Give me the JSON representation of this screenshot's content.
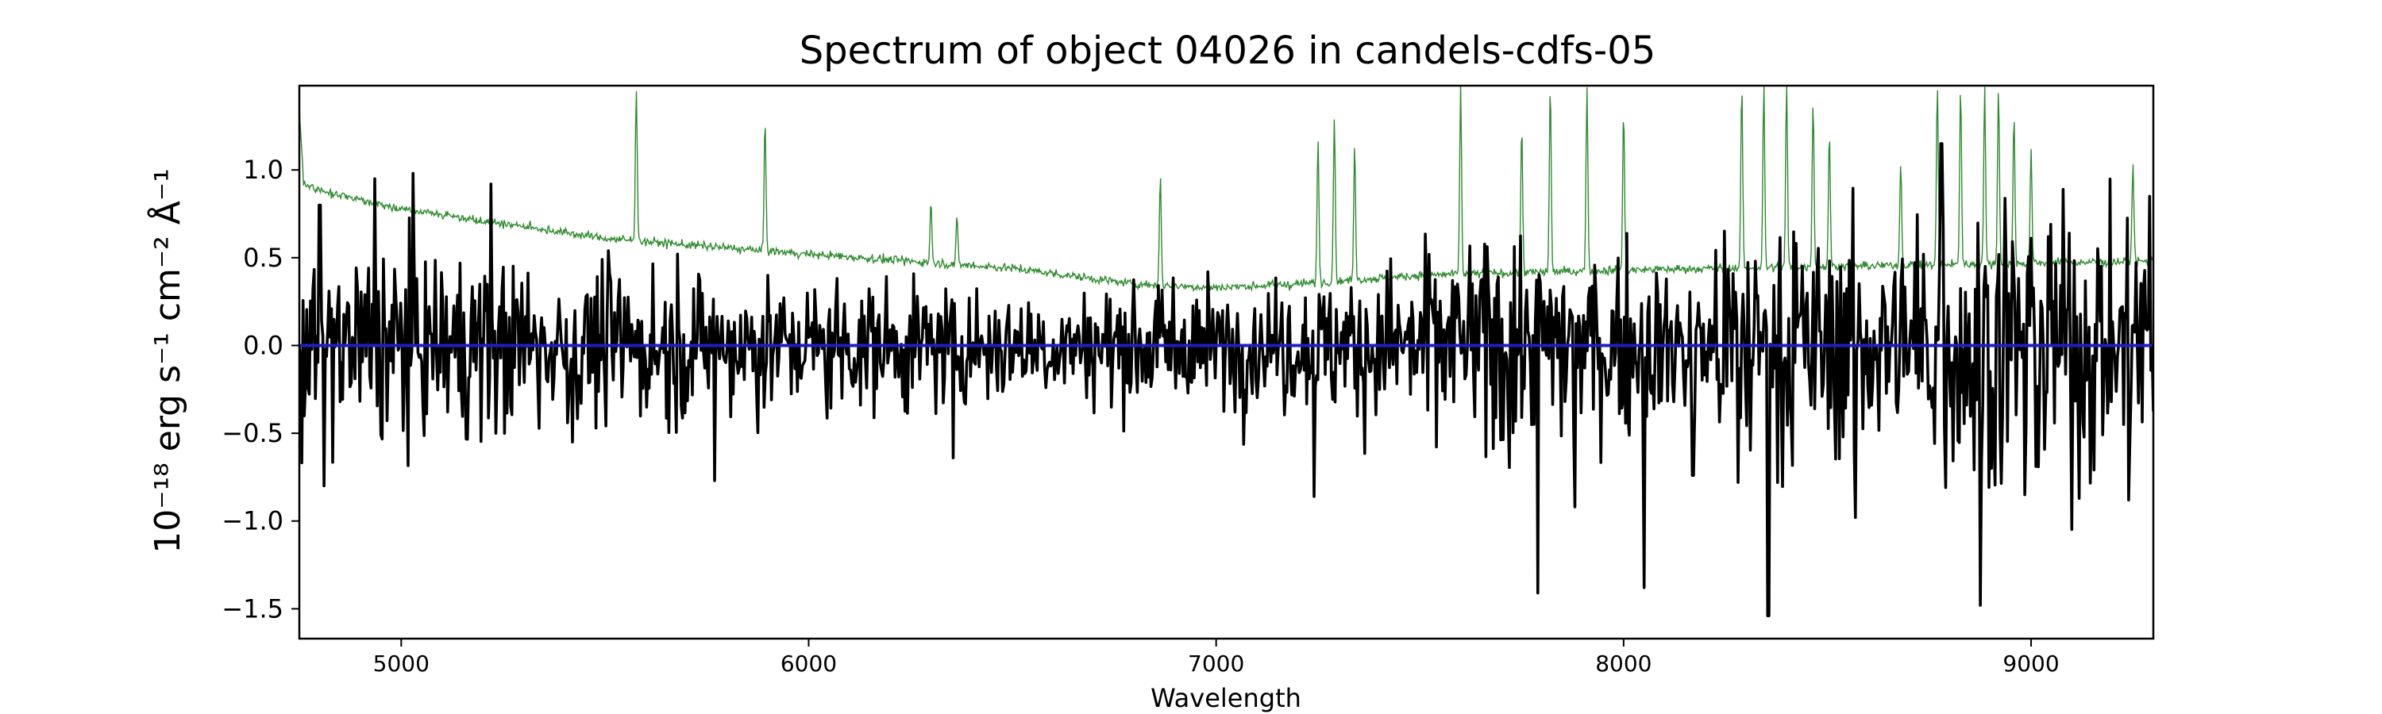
{
  "chart_data": {
    "type": "line",
    "title": "Spectrum of object 04026 in candels-cdfs-05",
    "xlabel": "Wavelength",
    "ylabel": "10⁻¹⁸ erg s⁻¹ cm⁻² Å⁻¹",
    "xlim": [
      4750,
      9300
    ],
    "ylim": [
      -1.67,
      1.48
    ],
    "xticks": [
      5000,
      6000,
      7000,
      8000,
      9000
    ],
    "yticks": [
      -1.5,
      -1.0,
      -0.5,
      0.0,
      0.5,
      1.0
    ],
    "grid": false,
    "series": [
      {
        "color": "#000000",
        "style": "flux",
        "x_range": [
          4750,
          9300
        ],
        "n_points": 1500,
        "noise_sigma_envelope": [
          [
            4750,
            0.28
          ],
          [
            5500,
            0.22
          ],
          [
            6500,
            0.16
          ],
          [
            7200,
            0.18
          ],
          [
            7700,
            0.32
          ],
          [
            8100,
            0.22
          ],
          [
            8300,
            0.38
          ],
          [
            8600,
            0.3
          ],
          [
            8900,
            0.45
          ],
          [
            9300,
            0.35
          ]
        ],
        "features": [
          {
            "x": 4800,
            "y": 0.8
          },
          {
            "x": 4810,
            "y": -0.8
          },
          {
            "x": 4935,
            "y": 0.95
          },
          {
            "x": 5030,
            "y": 0.98
          },
          {
            "x": 5220,
            "y": 0.92
          },
          {
            "x": 5420,
            "y": -0.55
          },
          {
            "x": 5770,
            "y": -0.77
          },
          {
            "x": 6355,
            "y": -0.64
          },
          {
            "x": 7240,
            "y": -0.86
          },
          {
            "x": 7790,
            "y": -1.41
          },
          {
            "x": 7880,
            "y": -0.92
          },
          {
            "x": 8050,
            "y": -1.38
          },
          {
            "x": 8170,
            "y": -0.74
          },
          {
            "x": 8280,
            "y": -0.78
          },
          {
            "x": 8355,
            "y": -1.54
          },
          {
            "x": 8570,
            "y": -0.98
          },
          {
            "x": 8780,
            "y": 1.15
          },
          {
            "x": 8875,
            "y": -1.48
          },
          {
            "x": 8985,
            "y": -0.85
          },
          {
            "x": 9240,
            "y": -0.88
          },
          {
            "x": 9290,
            "y": 0.85
          }
        ]
      },
      {
        "color": "#2e8b2e",
        "style": "error",
        "continuum": [
          [
            4750,
            1.35
          ],
          [
            4760,
            0.92
          ],
          [
            4800,
            0.88
          ],
          [
            5000,
            0.78
          ],
          [
            5500,
            0.61
          ],
          [
            6000,
            0.52
          ],
          [
            6500,
            0.44
          ],
          [
            6800,
            0.35
          ],
          [
            7000,
            0.33
          ],
          [
            7200,
            0.35
          ],
          [
            7500,
            0.4
          ],
          [
            8000,
            0.43
          ],
          [
            8500,
            0.45
          ],
          [
            9300,
            0.48
          ]
        ],
        "sky_lines": [
          {
            "x": 5577,
            "y": 1.48
          },
          {
            "x": 5893,
            "y": 1.28
          },
          {
            "x": 6300,
            "y": 0.82
          },
          {
            "x": 6364,
            "y": 0.72
          },
          {
            "x": 6863,
            "y": 0.98
          },
          {
            "x": 7250,
            "y": 1.17
          },
          {
            "x": 7290,
            "y": 1.32
          },
          {
            "x": 7340,
            "y": 1.15
          },
          {
            "x": 7600,
            "y": 1.48
          },
          {
            "x": 7750,
            "y": 1.25
          },
          {
            "x": 7820,
            "y": 1.48
          },
          {
            "x": 7910,
            "y": 1.48
          },
          {
            "x": 8000,
            "y": 1.33
          },
          {
            "x": 8290,
            "y": 1.48
          },
          {
            "x": 8344,
            "y": 1.48
          },
          {
            "x": 8400,
            "y": 1.48
          },
          {
            "x": 8465,
            "y": 1.4
          },
          {
            "x": 8505,
            "y": 1.2
          },
          {
            "x": 8680,
            "y": 1.05
          },
          {
            "x": 8770,
            "y": 1.48
          },
          {
            "x": 8827,
            "y": 1.48
          },
          {
            "x": 8886,
            "y": 1.48
          },
          {
            "x": 8920,
            "y": 1.48
          },
          {
            "x": 8958,
            "y": 1.32
          },
          {
            "x": 9000,
            "y": 1.1
          },
          {
            "x": 9250,
            "y": 1.05
          }
        ]
      },
      {
        "color": "#1f1fbf",
        "style": "zero",
        "x": [
          4750,
          9300
        ],
        "y": [
          0.0,
          0.0
        ]
      }
    ]
  }
}
